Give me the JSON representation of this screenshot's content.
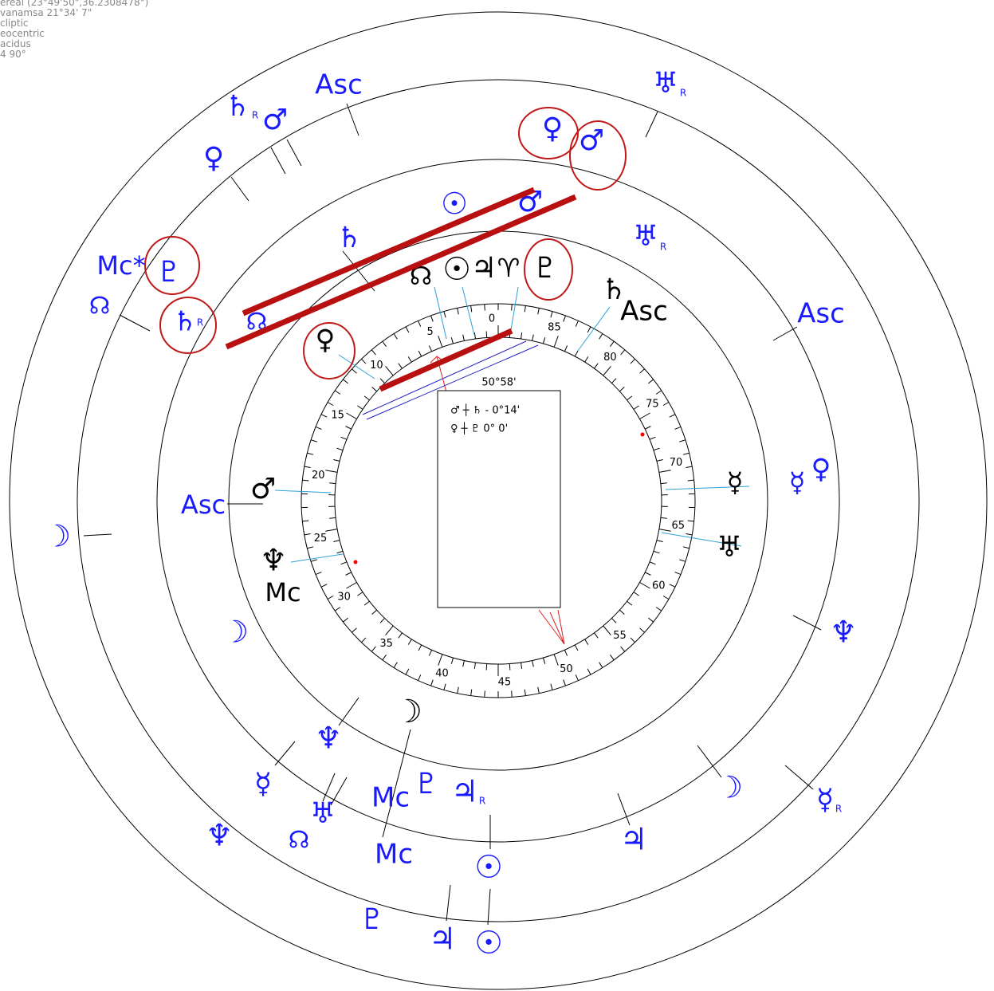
{
  "header": {
    "lines": [
      "ereal (23°49'50\",36.2308478°)",
      "vanamsa 21°34' 7\"",
      "cliptic",
      "eocentric",
      "acidus",
      "4  90°"
    ]
  },
  "dial": {
    "labels": [
      "0",
      "5",
      "10",
      "15",
      "20",
      "25",
      "30",
      "35",
      "40",
      "45",
      "50",
      "55",
      "60",
      "65",
      "70",
      "75",
      "80",
      "85"
    ]
  },
  "aspect_box": {
    "title": "50°58'",
    "rows": [
      "♂ ┼ ♄  - 0°14'",
      "♀ ┼ ♇    0° 0'"
    ]
  },
  "glyphs": [
    "Asc",
    "♄",
    "R",
    "♂",
    "♀",
    "♅",
    "R",
    "♀",
    "♂",
    "☉",
    "♂",
    "♄",
    "♅",
    "R",
    "Mc*",
    "♇",
    "☊",
    "♄",
    "R",
    "☊",
    "Asc",
    "Asc",
    "☽",
    "☽",
    "♆",
    "♆",
    "☿",
    "♆",
    "☊",
    "♅",
    "Mc",
    "♇",
    "♃",
    "R",
    "☽",
    "☿",
    "R",
    "♃",
    "☉",
    "Mc",
    "♇",
    "♃",
    "☉",
    "☿",
    "♀",
    "♀",
    "☊",
    "☉",
    "♃",
    "♈",
    "♇",
    "♄",
    "Asc",
    "♂",
    "♆",
    "Mc",
    "☿",
    "♅",
    "☽"
  ]
}
